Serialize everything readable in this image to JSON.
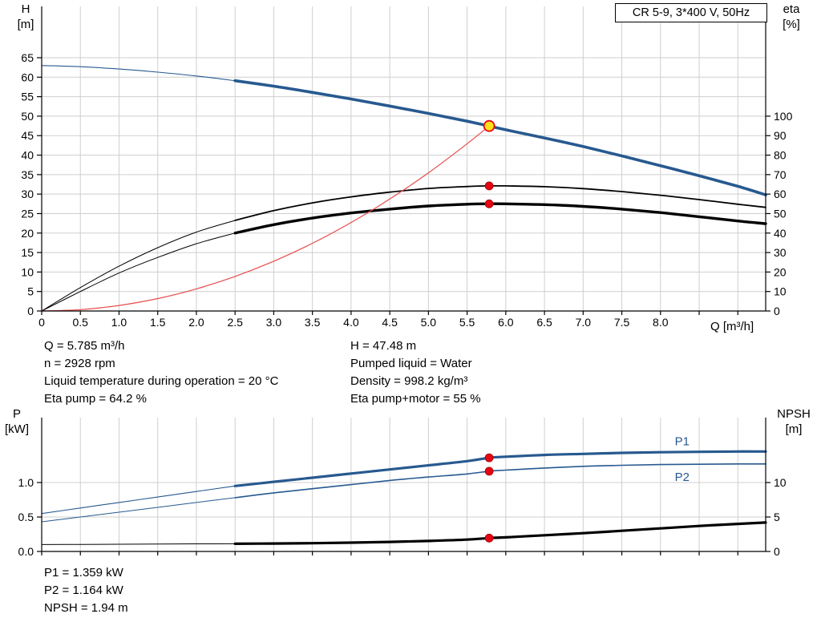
{
  "title_box": {
    "label": "CR 5-9, 3*400 V, 50Hz"
  },
  "colors": {
    "grid": "#cfcfcf",
    "axis": "#000000",
    "curve_blue": "#27598f",
    "curve_black": "#000000",
    "curve_red": "#e84c4c",
    "marker_red": "#e30613",
    "marker_yellow": "#ffe01a"
  },
  "info_top": {
    "left": [
      "Q = 5.785 m³/h",
      "n = 2928 rpm",
      "Liquid temperature during operation = 20 °C",
      "Eta pump = 64.2 %"
    ],
    "right": [
      "H = 47.48 m",
      "Pumped liquid = Water",
      "Density = 998.2 kg/m³",
      "Eta pump+motor = 55 %"
    ]
  },
  "info_bottom": {
    "lines": [
      "P1 = 1.359 kW",
      "P2 = 1.164 kW",
      "NPSH = 1.94 m"
    ]
  },
  "chart_data": [
    {
      "type": "line",
      "title": "CR 5-9, 3*400 V, 50Hz",
      "x_axis": {
        "label": "Q [m³/h]",
        "min": 0,
        "max": 9.36,
        "ticks": [
          0,
          0.5,
          1,
          1.5,
          2,
          2.5,
          3,
          3.5,
          4,
          4.5,
          5,
          5.5,
          6,
          6.5,
          7,
          7.5,
          8
        ],
        "tick_labels": [
          "0",
          "0.5",
          "1.0",
          "1.5",
          "2.0",
          "2.5",
          "3.0",
          "3.5",
          "4.0",
          "4.5",
          "5.0",
          "5.5",
          "6.0",
          "6.5",
          "7.0",
          "7.5",
          "8.0"
        ],
        "unlabeled_ticks": [
          8.5,
          9
        ]
      },
      "y_left": {
        "label": "H",
        "unit": "[m]",
        "min": 0,
        "max": 65,
        "ticks": [
          0,
          5,
          10,
          15,
          20,
          25,
          30,
          35,
          40,
          45,
          50,
          55,
          60,
          65
        ]
      },
      "y_right": {
        "label": "eta",
        "unit": "[%]",
        "min": 0,
        "max": 100,
        "left_equiv": 50,
        "ticks": [
          0,
          10,
          20,
          30,
          40,
          50,
          60,
          70,
          80,
          90,
          100
        ]
      },
      "grid": true,
      "series": [
        {
          "name": "hq-curve-extended",
          "axis": "left",
          "color": "#27598f",
          "width": 1.1,
          "x": [
            0,
            0.5,
            1,
            1.5,
            2,
            2.5
          ],
          "y": [
            63,
            62.7,
            62.1,
            61.3,
            60.3,
            59.1
          ]
        },
        {
          "name": "hq-curve",
          "axis": "left",
          "color": "#27598f",
          "width": 3.6,
          "x": [
            2.5,
            3,
            3.5,
            4,
            4.5,
            5,
            5.5,
            5.785,
            6,
            6.5,
            7,
            7.5,
            8,
            8.5,
            9,
            9.36
          ],
          "y": [
            59.1,
            57.7,
            56.1,
            54.4,
            52.6,
            50.7,
            48.7,
            47.48,
            46.5,
            44.4,
            42.2,
            39.8,
            37.3,
            34.7,
            32,
            29.8
          ]
        },
        {
          "name": "eta-pump-curve-extended",
          "axis": "right",
          "color": "#000000",
          "width": 1,
          "x": [
            0,
            0.5,
            1,
            1.5,
            2,
            2.5
          ],
          "y": [
            0,
            12,
            23,
            32.5,
            40.5,
            46.5
          ]
        },
        {
          "name": "eta-pump-curve",
          "axis": "right",
          "color": "#000000",
          "width": 1.8,
          "x": [
            2.5,
            3,
            3.5,
            4,
            4.5,
            5,
            5.5,
            5.785,
            6,
            6.5,
            7,
            7.5,
            8,
            8.5,
            9,
            9.36
          ],
          "y": [
            46.5,
            51.5,
            55.5,
            58.6,
            61,
            62.9,
            63.9,
            64.2,
            64.2,
            63.8,
            62.8,
            61.3,
            59.4,
            57.2,
            54.8,
            53.2
          ]
        },
        {
          "name": "eta-pump-motor-curve-extended",
          "axis": "right",
          "color": "#000000",
          "width": 1,
          "x": [
            0,
            0.5,
            1,
            1.5,
            2,
            2.5
          ],
          "y": [
            0,
            10,
            19.5,
            27.5,
            34.5,
            40
          ]
        },
        {
          "name": "eta-pump-motor-curve",
          "axis": "right",
          "color": "#000000",
          "width": 3.4,
          "x": [
            2.5,
            3,
            3.5,
            4,
            4.5,
            5,
            5.5,
            5.785,
            6,
            6.5,
            7,
            7.5,
            8,
            8.5,
            9,
            9.36
          ],
          "y": [
            40,
            44.3,
            47.7,
            50.3,
            52.3,
            53.9,
            54.8,
            55,
            55,
            54.6,
            53.7,
            52.3,
            50.5,
            48.4,
            46.2,
            44.8
          ]
        },
        {
          "name": "system-curve",
          "axis": "left",
          "color": "#e84c4c",
          "width": 1.2,
          "x": [
            0,
            0.5,
            1,
            1.5,
            2,
            2.5,
            3,
            3.5,
            4,
            4.5,
            5,
            5.5,
            5.785
          ],
          "y": [
            0,
            0.35,
            1.42,
            3.19,
            5.67,
            8.87,
            12.77,
            17.38,
            22.7,
            28.73,
            35.47,
            42.92,
            47.48
          ]
        }
      ],
      "markers": [
        {
          "name": "duty-point",
          "x": 5.785,
          "y": 47.48,
          "axis": "left",
          "r": 6.5,
          "fill": "#ffe01a",
          "stroke": "#e30613",
          "stroke_width": 1.8
        },
        {
          "name": "eta-pump-point",
          "x": 5.785,
          "y": 64.2,
          "axis": "right",
          "r": 5,
          "fill": "#e30613",
          "stroke": "#a50000",
          "stroke_width": 0.8
        },
        {
          "name": "eta-pump-motor-point",
          "x": 5.785,
          "y": 55,
          "axis": "right",
          "r": 5,
          "fill": "#e30613",
          "stroke": "#a50000",
          "stroke_width": 0.8
        }
      ],
      "curve_labels": []
    },
    {
      "type": "line",
      "title": "",
      "x_axis": {
        "label": "",
        "min": 0,
        "max": 9.36,
        "ticks": [
          0,
          0.5,
          1,
          1.5,
          2,
          2.5,
          3,
          3.5,
          4,
          4.5,
          5,
          5.5,
          6,
          6.5,
          7,
          7.5,
          8
        ],
        "tick_labels": [],
        "unlabeled_ticks": [
          8.5,
          9
        ]
      },
      "y_left": {
        "label": "P",
        "unit": "[kW]",
        "min": 0,
        "max": 1,
        "ticks": [
          0,
          0.5,
          1
        ],
        "tick_labels": [
          "0.0",
          "0.5",
          "1.0"
        ]
      },
      "y_right": {
        "label": "NPSH",
        "unit": "[m]",
        "min": 0,
        "max": 10,
        "left_equiv": 1,
        "ticks": [
          0,
          5,
          10
        ]
      },
      "grid": true,
      "series": [
        {
          "name": "p1-curve-extended",
          "axis": "left",
          "color": "#27598f",
          "width": 1.1,
          "x": [
            0,
            0.5,
            1,
            1.5,
            2,
            2.5
          ],
          "y": [
            0.55,
            0.63,
            0.71,
            0.79,
            0.87,
            0.95
          ]
        },
        {
          "name": "p1-curve",
          "axis": "left",
          "color": "#27598f",
          "width": 3.2,
          "x": [
            2.5,
            3,
            3.5,
            4,
            4.5,
            5,
            5.5,
            5.785,
            6,
            6.5,
            7,
            7.5,
            8,
            8.5,
            9,
            9.36
          ],
          "y": [
            0.95,
            1.01,
            1.07,
            1.13,
            1.19,
            1.25,
            1.31,
            1.359,
            1.375,
            1.4,
            1.415,
            1.43,
            1.44,
            1.445,
            1.45,
            1.45
          ]
        },
        {
          "name": "p2-curve-extended",
          "axis": "left",
          "color": "#27598f",
          "width": 1,
          "x": [
            0,
            0.5,
            1,
            1.5,
            2,
            2.5
          ],
          "y": [
            0.43,
            0.5,
            0.57,
            0.64,
            0.71,
            0.78
          ]
        },
        {
          "name": "p2-curve",
          "axis": "left",
          "color": "#27598f",
          "width": 1.6,
          "x": [
            2.5,
            3,
            3.5,
            4,
            4.5,
            5,
            5.5,
            5.785,
            6,
            6.5,
            7,
            7.5,
            8,
            8.5,
            9,
            9.36
          ],
          "y": [
            0.78,
            0.85,
            0.91,
            0.97,
            1.03,
            1.08,
            1.125,
            1.164,
            1.18,
            1.21,
            1.235,
            1.25,
            1.26,
            1.265,
            1.27,
            1.27
          ]
        },
        {
          "name": "npsh-curve-extended",
          "axis": "right",
          "color": "#000000",
          "width": 1,
          "x": [
            0,
            0.5,
            1,
            1.5,
            2,
            2.5
          ],
          "y": [
            1,
            1.02,
            1.05,
            1.08,
            1.1,
            1.12
          ]
        },
        {
          "name": "npsh-curve",
          "axis": "right",
          "color": "#000000",
          "width": 3.2,
          "x": [
            2.5,
            3,
            3.5,
            4,
            4.5,
            5,
            5.5,
            5.785,
            6,
            6.5,
            7,
            7.5,
            8,
            8.5,
            9,
            9.36
          ],
          "y": [
            1.12,
            1.15,
            1.2,
            1.28,
            1.38,
            1.52,
            1.72,
            1.94,
            2.05,
            2.35,
            2.65,
            3,
            3.35,
            3.7,
            4,
            4.2
          ]
        }
      ],
      "markers": [
        {
          "name": "p1-point",
          "x": 5.785,
          "y": 1.359,
          "axis": "left",
          "r": 5,
          "fill": "#e30613",
          "stroke": "#a50000",
          "stroke_width": 0.8
        },
        {
          "name": "p2-point",
          "x": 5.785,
          "y": 1.164,
          "axis": "left",
          "r": 5,
          "fill": "#e30613",
          "stroke": "#a50000",
          "stroke_width": 0.8
        },
        {
          "name": "npsh-point",
          "x": 5.785,
          "y": 1.94,
          "axis": "right",
          "r": 5,
          "fill": "#e30613",
          "stroke": "#a50000",
          "stroke_width": 0.8
        }
      ],
      "curve_labels": [
        {
          "text": "P1",
          "x": 8.28,
          "y": 1.6,
          "axis": "left",
          "color": "#27598f"
        },
        {
          "text": "P2",
          "x": 8.28,
          "y": 1.08,
          "axis": "left",
          "color": "#27598f"
        }
      ]
    }
  ]
}
